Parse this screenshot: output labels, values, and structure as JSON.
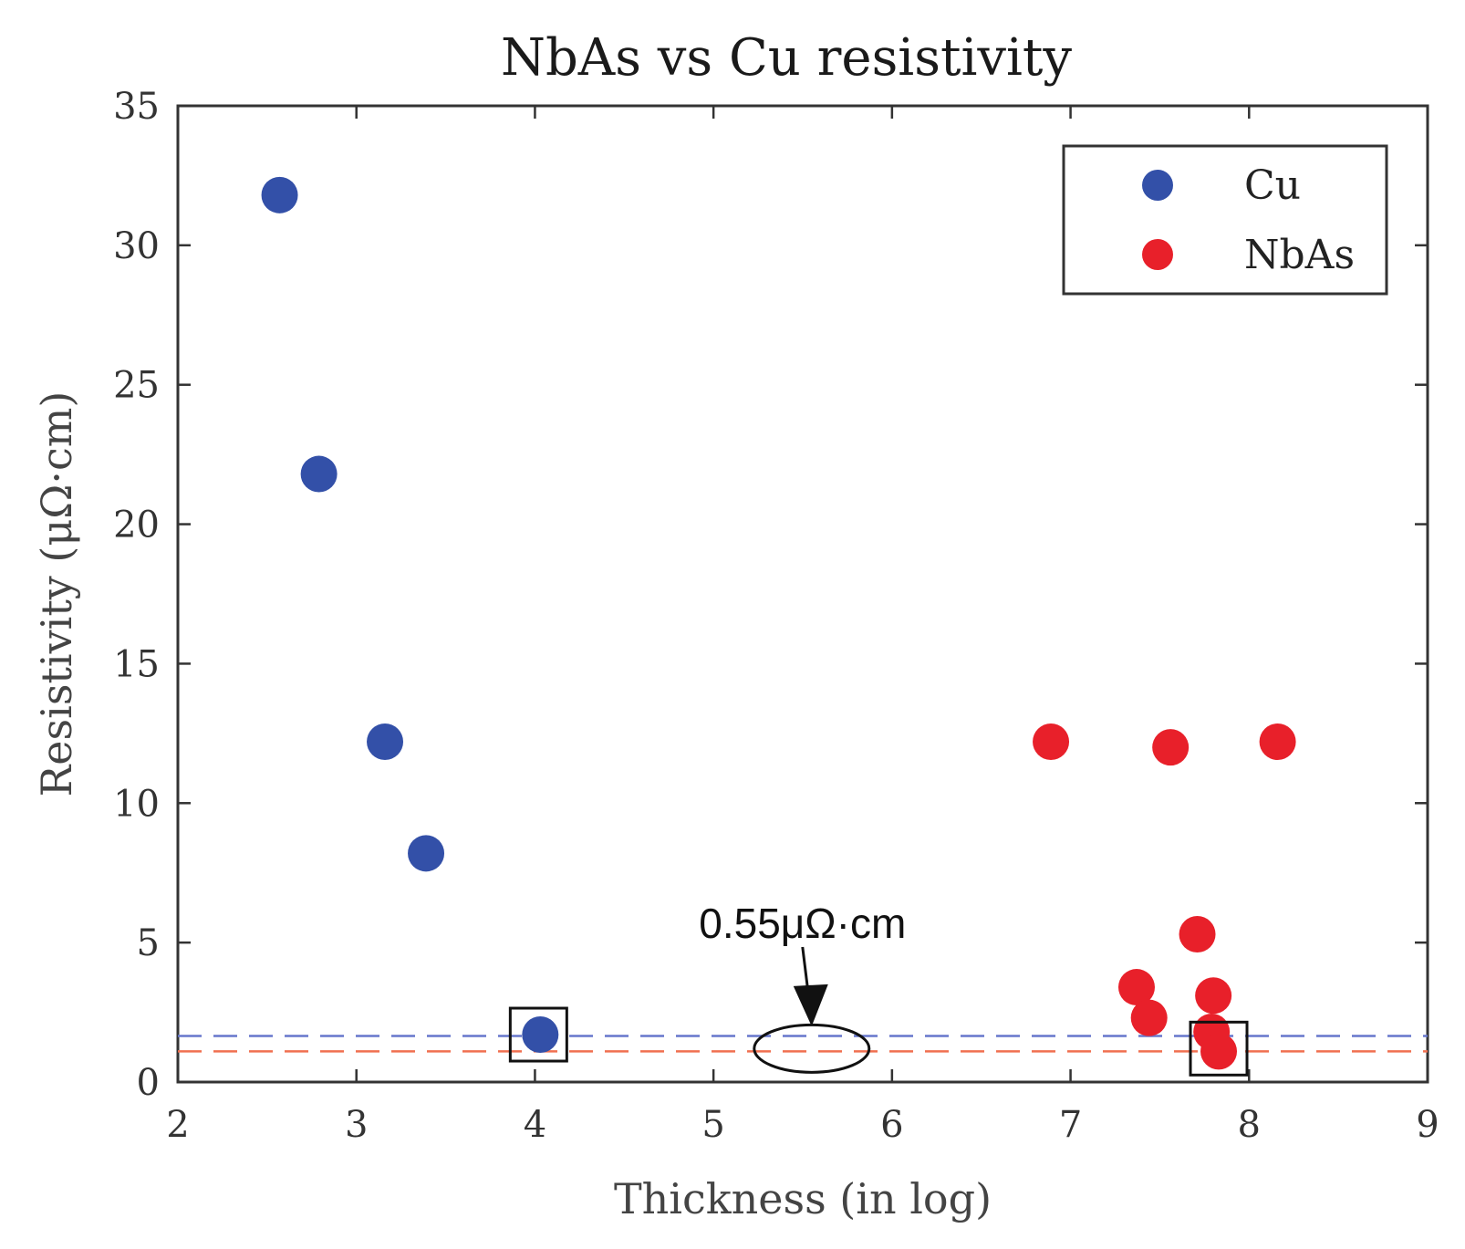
{
  "chart_data": {
    "type": "scatter",
    "title": "NbAs vs Cu resistivity",
    "xlabel": "Thickness (in log)",
    "ylabel": "Resistivity (μΩ·cm)",
    "xlim": [
      2,
      9
    ],
    "ylim": [
      0,
      35
    ],
    "xticks": [
      2,
      3,
      4,
      5,
      6,
      7,
      8,
      9
    ],
    "yticks": [
      0,
      5,
      10,
      15,
      20,
      25,
      30,
      35
    ],
    "grid": false,
    "legend_position": "top-right",
    "series": [
      {
        "name": "Cu",
        "color": "#3350a8",
        "x": [
          2.57,
          2.79,
          3.16,
          3.39,
          4.03
        ],
        "y": [
          31.8,
          21.8,
          12.2,
          8.2,
          1.7
        ]
      },
      {
        "name": "NbAs",
        "color": "#e8202a",
        "x": [
          6.89,
          7.56,
          8.16,
          7.71,
          7.37,
          7.44,
          7.8,
          7.79,
          7.83
        ],
        "y": [
          12.2,
          12.0,
          12.2,
          5.3,
          3.4,
          2.3,
          3.1,
          1.8,
          1.1
        ]
      }
    ],
    "reference_lines": [
      {
        "name": "Cu minimum",
        "y": 1.65,
        "color": "#6677cc",
        "style": "dashed"
      },
      {
        "name": "NbAs minimum",
        "y": 1.1,
        "color": "#f07050",
        "style": "dashed"
      }
    ],
    "annotations": [
      {
        "text": "0.55μΩ·cm",
        "arrow_to_x": 5.55,
        "arrow_to_y": 2.0,
        "ellipse_center_x": 5.55,
        "ellipse_center_y": 1.2
      }
    ],
    "highlight_boxes": [
      {
        "center_x": 4.02,
        "center_y": 1.7
      },
      {
        "center_x": 7.83,
        "center_y": 1.2
      }
    ]
  }
}
